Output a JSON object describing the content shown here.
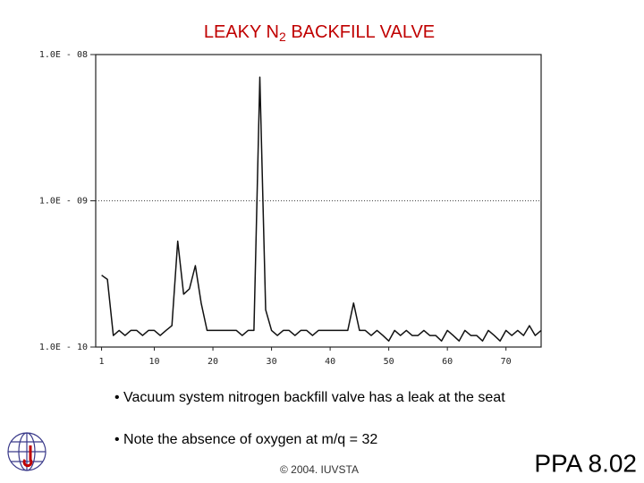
{
  "chart_data": {
    "type": "line",
    "title": [
      "LEAKY N",
      "2",
      " BACKFILL VALVE"
    ],
    "x": [
      1,
      2,
      3,
      4,
      5,
      6,
      7,
      8,
      9,
      10,
      11,
      12,
      13,
      14,
      15,
      16,
      17,
      18,
      19,
      20,
      21,
      22,
      23,
      24,
      25,
      26,
      27,
      28,
      29,
      30,
      31,
      32,
      33,
      34,
      35,
      36,
      37,
      38,
      39,
      40,
      41,
      42,
      43,
      44,
      45,
      46,
      47,
      48,
      49,
      50,
      51,
      52,
      53,
      54,
      55,
      56,
      57,
      58,
      59,
      60,
      61,
      62,
      63,
      64,
      65,
      66,
      67,
      68,
      69,
      70,
      71,
      72,
      73,
      74,
      75,
      76
    ],
    "series": [
      {
        "color": "#111111",
        "values": [
          3.1e-10,
          2.9e-10,
          1.2e-10,
          1.3e-10,
          1.2e-10,
          1.3e-10,
          1.3e-10,
          1.2e-10,
          1.3e-10,
          1.3e-10,
          1.2e-10,
          1.3e-10,
          1.4e-10,
          5.3e-10,
          2.3e-10,
          2.5e-10,
          3.6e-10,
          2e-10,
          1.3e-10,
          1.3e-10,
          1.3e-10,
          1.3e-10,
          1.3e-10,
          1.3e-10,
          1.2e-10,
          1.3e-10,
          1.3e-10,
          7e-09,
          1.8e-10,
          1.3e-10,
          1.2e-10,
          1.3e-10,
          1.3e-10,
          1.2e-10,
          1.3e-10,
          1.3e-10,
          1.2e-10,
          1.3e-10,
          1.3e-10,
          1.3e-10,
          1.3e-10,
          1.3e-10,
          1.3e-10,
          2e-10,
          1.3e-10,
          1.3e-10,
          1.2e-10,
          1.3e-10,
          1.2e-10,
          1.1e-10,
          1.3e-10,
          1.2e-10,
          1.3e-10,
          1.2e-10,
          1.2e-10,
          1.3e-10,
          1.2e-10,
          1.2e-10,
          1.1e-10,
          1.3e-10,
          1.2e-10,
          1.1e-10,
          1.3e-10,
          1.2e-10,
          1.2e-10,
          1.1e-10,
          1.3e-10,
          1.2e-10,
          1.1e-10,
          1.3e-10,
          1.2e-10,
          1.3e-10,
          1.2e-10,
          1.4e-10,
          1.2e-10,
          1.3e-10
        ]
      }
    ],
    "xlim": [
      0,
      76
    ],
    "xticks": [
      1,
      10,
      20,
      30,
      40,
      50,
      60,
      70
    ],
    "ylim": [
      1e-10,
      1e-08
    ],
    "yticks": [
      {
        "value": 1e-10,
        "label": "1.0E - 10"
      },
      {
        "value": 1e-09,
        "label": "1.0E - 09"
      },
      {
        "value": 1e-08,
        "label": "1.0E - 08"
      }
    ],
    "log_y": true,
    "grid": true
  },
  "notes": [
    "• Vacuum system nitrogen backfill valve has a leak at the seat",
    "• Note the absence of oxygen at m/q = 32"
  ],
  "footer": "© 2004. IUVSTA",
  "slide_number": "PPA 8.02"
}
